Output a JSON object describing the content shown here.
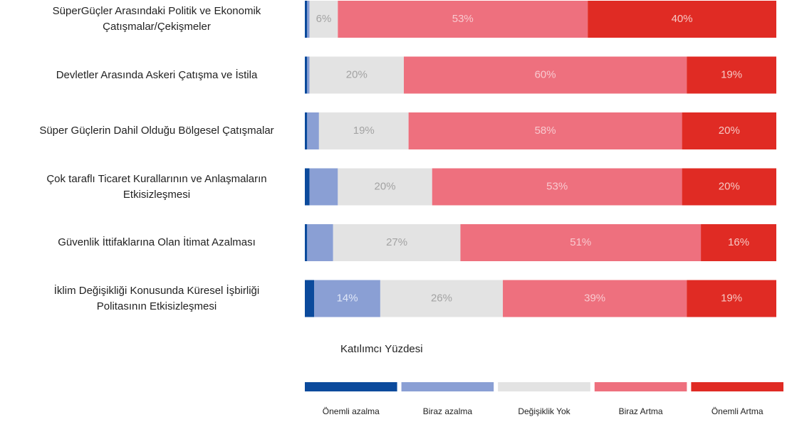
{
  "chart_data": {
    "type": "stacked_barh",
    "x_label": "Katılımcı Yüzdesi",
    "xlim": [
      0,
      100
    ],
    "categories": [
      "SüperGüçler Arasındaki Politik ve Ekonomik Çatışmalar/Çekişmeler",
      "Devletler Arasında Askeri  Çatışma ve İstila",
      "Süper Güçlerin Dahil Olduğu Bölgesel Çatışmalar",
      "Çok taraflı Ticaret Kurallarının ve Anlaşmaların Etkisizleşmesi",
      "Güvenlik İttifaklarına Olan İtimat Azalması",
      "İklim Değişikliği Konusunda Küresel İşbirliği Politasının Etkisizleşmesi"
    ],
    "series": [
      {
        "name": "Önemli azalma",
        "color": "#0b4a9c",
        "values": [
          0.5,
          0.5,
          0.5,
          1,
          0.5,
          2
        ],
        "value_labels": [
          null,
          null,
          null,
          null,
          null,
          null
        ]
      },
      {
        "name": "Biraz azalma",
        "color": "#8a9fd4",
        "values": [
          0.5,
          0.5,
          2.5,
          6,
          5.5,
          14
        ],
        "value_labels": [
          null,
          null,
          null,
          null,
          null,
          "14%"
        ]
      },
      {
        "name": "Değişiklik Yok",
        "color": "#e3e3e3",
        "values": [
          6,
          20,
          19,
          20,
          27,
          26
        ],
        "value_labels": [
          "6%",
          "20%",
          "19%",
          "20%",
          "27%",
          "26%"
        ]
      },
      {
        "name": "Biraz Artma",
        "color": "#ee707e",
        "values": [
          53,
          60,
          58,
          53,
          51,
          39
        ],
        "value_labels": [
          "53%",
          "60%",
          "58%",
          "53%",
          "51%",
          "39%"
        ]
      },
      {
        "name": "Önemli Artma",
        "color": "#e02b24",
        "values": [
          40,
          19,
          20,
          20,
          16,
          19
        ],
        "value_labels": [
          "40%",
          "19%",
          "20%",
          "20%",
          "16%",
          "19%"
        ]
      }
    ]
  }
}
